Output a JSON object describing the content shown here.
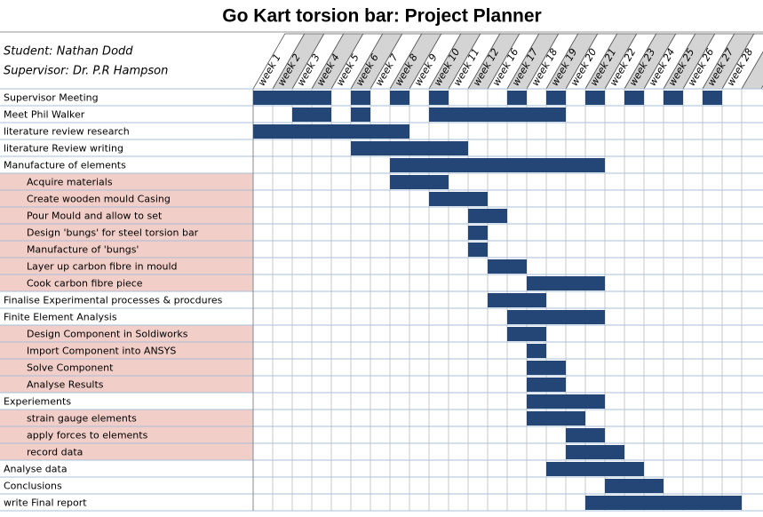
{
  "title": "Go Kart torsion bar: Project Planner",
  "student": "Student: Nathan Dodd",
  "supervisor": "Supervisor: Dr. P.R Hampson",
  "weeks": [
    {
      "value": 1,
      "label": "week 1"
    },
    {
      "value": 2,
      "label": "week 2"
    },
    {
      "value": 3,
      "label": "week 3"
    },
    {
      "value": 4,
      "label": "week 4"
    },
    {
      "value": 5,
      "label": "week 5"
    },
    {
      "value": 6,
      "label": "week 6"
    },
    {
      "value": 7,
      "label": "week 7"
    },
    {
      "value": 8,
      "label": "week 8"
    },
    {
      "value": 9,
      "label": "week 9"
    },
    {
      "value": 10,
      "label": "week 10"
    },
    {
      "value": 11,
      "label": "week 11"
    },
    {
      "value": 12,
      "label": "week 12"
    },
    {
      "value": 16,
      "label": "week 16"
    },
    {
      "value": 17,
      "label": "week 17"
    },
    {
      "value": 18,
      "label": "week 18"
    },
    {
      "value": 19,
      "label": "week 19"
    },
    {
      "value": 20,
      "label": "week 20"
    },
    {
      "value": 21,
      "label": "week 21"
    },
    {
      "value": 22,
      "label": "week 22"
    },
    {
      "value": 23,
      "label": "week 23"
    },
    {
      "value": 24,
      "label": "week 24"
    },
    {
      "value": 25,
      "label": "week 25"
    },
    {
      "value": 26,
      "label": "week 26"
    },
    {
      "value": 27,
      "label": "week 27"
    },
    {
      "value": 28,
      "label": "week 28"
    }
  ],
  "bar_color": "#244677",
  "sub_color": "#f1cec8",
  "tasks": [
    {
      "name": "Supervisor Meeting",
      "sub": false,
      "spans": [
        [
          1,
          4
        ],
        [
          6,
          6
        ],
        [
          8,
          8
        ],
        [
          10,
          10
        ],
        [
          17,
          17
        ],
        [
          19,
          19
        ],
        [
          21,
          21
        ],
        [
          23,
          23
        ],
        [
          25,
          25
        ],
        [
          27,
          27
        ]
      ]
    },
    {
      "name": "Meet Phil Walker",
      "sub": false,
      "spans": [
        [
          3,
          4
        ],
        [
          6,
          6
        ],
        [
          10,
          19
        ]
      ]
    },
    {
      "name": "literature review research",
      "sub": false,
      "spans": [
        [
          1,
          8
        ]
      ]
    },
    {
      "name": "literature Review writing",
      "sub": false,
      "spans": [
        [
          6,
          11
        ]
      ]
    },
    {
      "name": "Manufacture of elements",
      "sub": false,
      "spans": [
        [
          8,
          21
        ]
      ]
    },
    {
      "name": "Acquire materials",
      "sub": true,
      "spans": [
        [
          8,
          10
        ]
      ]
    },
    {
      "name": "Create wooden mould Casing",
      "sub": true,
      "spans": [
        [
          10,
          12
        ]
      ]
    },
    {
      "name": "Pour Mould and allow to set",
      "sub": true,
      "spans": [
        [
          12,
          16
        ]
      ]
    },
    {
      "name": "Design 'bungs' for steel torsion bar",
      "sub": true,
      "spans": [
        [
          12,
          12
        ]
      ]
    },
    {
      "name": "Manufacture of 'bungs'",
      "sub": true,
      "spans": [
        [
          12,
          12
        ]
      ]
    },
    {
      "name": "Layer up carbon fibre in mould",
      "sub": true,
      "spans": [
        [
          16,
          17
        ]
      ]
    },
    {
      "name": "Cook carbon fibre piece",
      "sub": true,
      "spans": [
        [
          18,
          21
        ]
      ]
    },
    {
      "name": "Finalise Experimental processes & procdures",
      "sub": false,
      "spans": [
        [
          16,
          18
        ]
      ]
    },
    {
      "name": "Finite Element Analysis",
      "sub": false,
      "spans": [
        [
          17,
          21
        ]
      ]
    },
    {
      "name": "Design Component in Soldiworks",
      "sub": true,
      "spans": [
        [
          17,
          18
        ]
      ]
    },
    {
      "name": "Import Component into ANSYS",
      "sub": true,
      "spans": [
        [
          18,
          18
        ]
      ]
    },
    {
      "name": "Solve Component",
      "sub": true,
      "spans": [
        [
          18,
          19
        ]
      ]
    },
    {
      "name": "Analyse Results",
      "sub": true,
      "spans": [
        [
          18,
          19
        ]
      ]
    },
    {
      "name": "Experiements",
      "sub": false,
      "spans": [
        [
          18,
          21
        ]
      ]
    },
    {
      "name": "strain gauge elements",
      "sub": true,
      "spans": [
        [
          18,
          20
        ]
      ]
    },
    {
      "name": "apply forces to elements",
      "sub": true,
      "spans": [
        [
          20,
          21
        ]
      ]
    },
    {
      "name": "record data",
      "sub": true,
      "spans": [
        [
          20,
          22
        ]
      ]
    },
    {
      "name": "Analyse data",
      "sub": false,
      "spans": [
        [
          19,
          23
        ]
      ]
    },
    {
      "name": "Conclusions",
      "sub": false,
      "spans": [
        [
          22,
          24
        ]
      ]
    },
    {
      "name": "write Final report",
      "sub": false,
      "spans": [
        [
          21,
          28
        ]
      ]
    }
  ]
}
